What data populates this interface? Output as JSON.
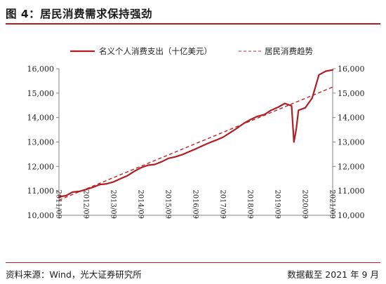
{
  "header": {
    "title": "图 4：居民消费需求保持强劲"
  },
  "footer": {
    "source": "资料来源：Wind，光大证券研究所",
    "as_of": "数据截至 2021 年 9 月"
  },
  "colors": {
    "accent": "#b01e23",
    "trend": "#c0262b",
    "axis": "#808080"
  },
  "chart_data": {
    "type": "line",
    "title": "",
    "xlabel": "",
    "ylabel": "",
    "ylim": [
      10000,
      16000
    ],
    "yticks": [
      10000,
      11000,
      12000,
      13000,
      14000,
      15000,
      16000
    ],
    "ytick_labels": [
      "10,000",
      "11,000",
      "12,000",
      "13,000",
      "14,000",
      "15,000",
      "16,000"
    ],
    "right_axis_mirror": true,
    "xlim": [
      "2011/09",
      "2021/09"
    ],
    "x_tick_labels": [
      "2011/09",
      "2012/09",
      "2013/09",
      "2014/09",
      "2015/09",
      "2016/09",
      "2017/09",
      "2018/09",
      "2019/09",
      "2020/09",
      "2021/09"
    ],
    "grid": false,
    "legend_position": "top",
    "series": [
      {
        "name": "名义个人消费支出（十亿美元）",
        "style": "solid",
        "color": "#b01e23",
        "x": [
          "2011/09",
          "2011/12",
          "2012/03",
          "2012/06",
          "2012/09",
          "2012/12",
          "2013/03",
          "2013/06",
          "2013/09",
          "2013/12",
          "2014/03",
          "2014/06",
          "2014/09",
          "2014/12",
          "2015/03",
          "2015/06",
          "2015/09",
          "2015/12",
          "2016/03",
          "2016/06",
          "2016/09",
          "2016/12",
          "2017/03",
          "2017/06",
          "2017/09",
          "2017/12",
          "2018/03",
          "2018/06",
          "2018/09",
          "2018/12",
          "2019/03",
          "2019/06",
          "2019/09",
          "2019/12",
          "2020/03",
          "2020/04",
          "2020/05",
          "2020/06",
          "2020/09",
          "2020/12",
          "2021/03",
          "2021/06",
          "2021/09"
        ],
        "values": [
          10760,
          10800,
          10950,
          10980,
          11060,
          11150,
          11260,
          11290,
          11370,
          11500,
          11620,
          11800,
          11950,
          12050,
          12080,
          12190,
          12330,
          12390,
          12480,
          12600,
          12720,
          12850,
          12970,
          13080,
          13200,
          13380,
          13560,
          13760,
          13920,
          14050,
          14120,
          14300,
          14420,
          14580,
          14480,
          13000,
          13500,
          14300,
          14400,
          14800,
          15750,
          15900,
          15950
        ]
      },
      {
        "name": "居民消费趋势",
        "style": "dashed",
        "color": "#c0262b",
        "x": [
          "2011/09",
          "2021/09"
        ],
        "values": [
          10620,
          15250
        ]
      }
    ]
  }
}
